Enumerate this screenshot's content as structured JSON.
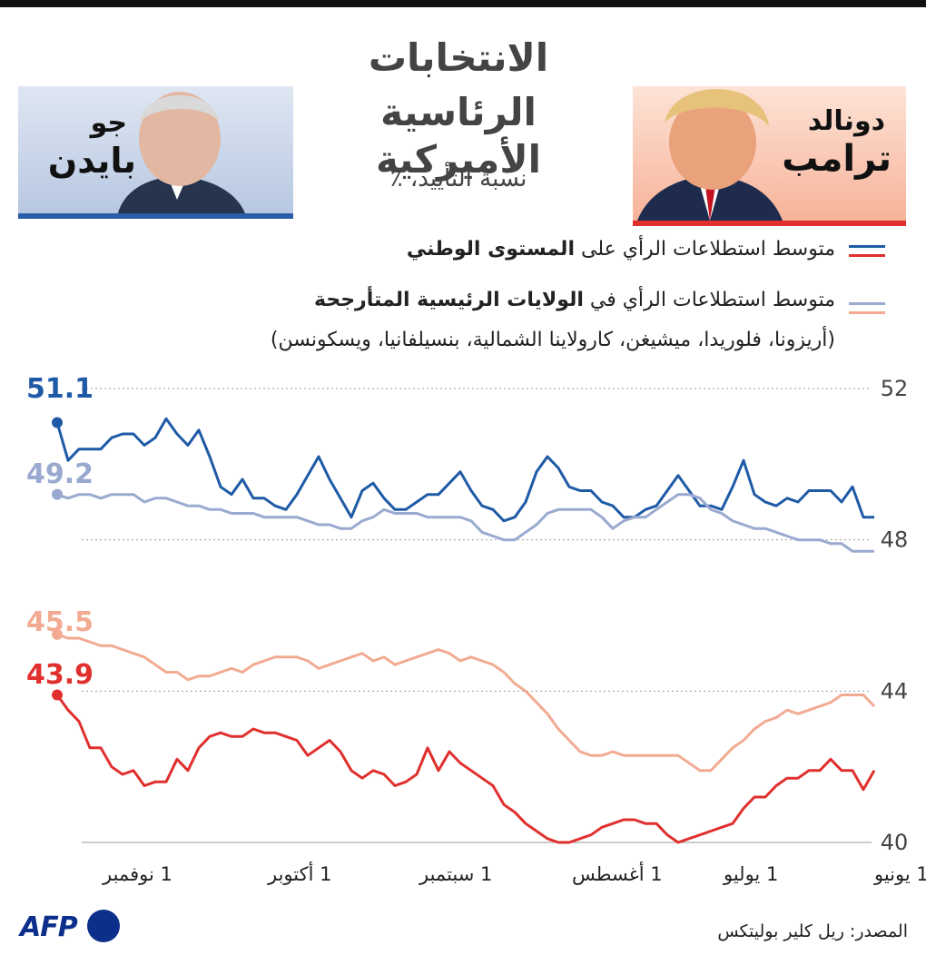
{
  "header": {
    "title_line1": "الانتخابات",
    "title_line2": "الرئاسية الأميركية",
    "subtitle": "نسبة التأييد، ٪"
  },
  "candidates": {
    "biden": {
      "first": "جو",
      "last": "بايدن"
    },
    "trump": {
      "first": "دونالد",
      "last": "ترامب"
    }
  },
  "legend": {
    "national_prefix": "متوسط استطلاعات الرأي على ",
    "national_bold": "المستوى الوطني",
    "swing_prefix": "متوسط استطلاعات الرأي في ",
    "swing_bold": "الولايات الرئيسية المتأرجحة",
    "swing_states": "(أريزونا، فلوريدا، ميشيغن، كارولاينا الشمالية، بنسيلفانيا، ويسكونسن)"
  },
  "colors": {
    "biden_national": "#1f5aa6",
    "biden_swing": "#99a9cf",
    "trump_national": "#e0302e",
    "trump_swing": "#f2ab92",
    "grid": "#999999",
    "label_grey": "#444444"
  },
  "chart_data": {
    "type": "line",
    "title": "الانتخابات الرئاسية الأميركية",
    "ylabel": "نسبة التأييد، ٪",
    "ylim": [
      40,
      52
    ],
    "yticks": [
      "52",
      "48",
      "44",
      "40"
    ],
    "xticks": [
      "1 يونيو",
      "1 يوليو",
      "1 أغسطس",
      "1 سبتمبر",
      "1 أكتوبر",
      "1 نوفمبر"
    ],
    "x_direction": "right-to-left (June at right, November at left)",
    "series": [
      {
        "name": "بايدن — المستوى الوطني",
        "key": "biden_national",
        "end_label": "51.1",
        "values": [
          48.6,
          48.6,
          49.4,
          49.0,
          49.3,
          49.3,
          49.3,
          49.0,
          49.1,
          48.9,
          49.0,
          49.2,
          50.1,
          49.4,
          48.8,
          48.9,
          48.9,
          49.3,
          49.7,
          49.3,
          48.9,
          48.8,
          48.6,
          48.6,
          48.9,
          49.0,
          49.3,
          49.3,
          49.4,
          49.9,
          50.2,
          49.8,
          49.0,
          48.6,
          48.5,
          48.8,
          48.9,
          49.3,
          49.8,
          49.5,
          49.2,
          49.2,
          49.0,
          48.8,
          48.8,
          49.1,
          49.5,
          49.3,
          48.6,
          49.1,
          49.6,
          50.2,
          49.7,
          49.2,
          48.8,
          48.9,
          49.1,
          49.1,
          49.6,
          49.2,
          49.4,
          50.2,
          50.9,
          50.5,
          50.8,
          51.2,
          50.7,
          50.5,
          50.8,
          50.8,
          50.7,
          50.4,
          50.4,
          50.4,
          50.1,
          51.1
        ]
      },
      {
        "name": "بايدن — الولايات المتأرجحة",
        "key": "biden_swing",
        "end_label": "49.2",
        "values": [
          47.7,
          47.7,
          47.7,
          47.9,
          47.9,
          48.0,
          48.0,
          48.0,
          48.1,
          48.2,
          48.3,
          48.3,
          48.4,
          48.5,
          48.7,
          48.8,
          49.1,
          49.2,
          49.2,
          49.0,
          48.8,
          48.6,
          48.6,
          48.5,
          48.3,
          48.6,
          48.8,
          48.8,
          48.8,
          48.8,
          48.7,
          48.4,
          48.2,
          48.0,
          48.0,
          48.1,
          48.2,
          48.5,
          48.6,
          48.6,
          48.6,
          48.6,
          48.7,
          48.7,
          48.7,
          48.8,
          48.6,
          48.5,
          48.3,
          48.3,
          48.4,
          48.4,
          48.5,
          48.6,
          48.6,
          48.6,
          48.6,
          48.7,
          48.7,
          48.7,
          48.8,
          48.8,
          48.9,
          48.9,
          49.0,
          49.1,
          49.1,
          49.0,
          49.2,
          49.2,
          49.2,
          49.1,
          49.2,
          49.2,
          49.1,
          49.2
        ]
      },
      {
        "name": "ترامب — المستوى الوطني",
        "key": "trump_national",
        "end_label": "43.9",
        "values": [
          41.9,
          41.4,
          41.9,
          41.9,
          42.2,
          41.9,
          41.9,
          41.7,
          41.7,
          41.5,
          41.2,
          41.2,
          40.9,
          40.5,
          40.4,
          40.3,
          40.2,
          40.1,
          40.0,
          40.2,
          40.5,
          40.5,
          40.6,
          40.6,
          40.5,
          40.4,
          40.2,
          40.1,
          40.0,
          40.0,
          40.1,
          40.3,
          40.5,
          40.8,
          41.0,
          41.5,
          41.7,
          41.9,
          42.1,
          42.4,
          41.9,
          42.5,
          41.8,
          41.6,
          41.5,
          41.8,
          41.9,
          41.7,
          41.9,
          42.4,
          42.7,
          42.5,
          42.3,
          42.7,
          42.8,
          42.9,
          42.9,
          43.0,
          42.8,
          42.8,
          42.9,
          42.8,
          42.5,
          41.9,
          42.2,
          41.6,
          41.6,
          41.5,
          41.9,
          41.8,
          42.0,
          42.5,
          42.5,
          43.2,
          43.5,
          43.9
        ]
      },
      {
        "name": "ترامب — الولايات المتأرجحة",
        "key": "trump_swing",
        "end_label": "45.5",
        "values": [
          43.6,
          43.9,
          43.9,
          43.9,
          43.7,
          43.6,
          43.5,
          43.4,
          43.5,
          43.3,
          43.2,
          43.0,
          42.7,
          42.5,
          42.2,
          41.9,
          41.9,
          42.1,
          42.3,
          42.3,
          42.3,
          42.3,
          42.3,
          42.3,
          42.4,
          42.3,
          42.3,
          42.4,
          42.7,
          43.0,
          43.4,
          43.7,
          44.0,
          44.2,
          44.5,
          44.7,
          44.8,
          44.9,
          44.8,
          45.0,
          45.1,
          45.0,
          44.9,
          44.8,
          44.7,
          44.9,
          44.8,
          45.0,
          44.9,
          44.8,
          44.7,
          44.6,
          44.8,
          44.9,
          44.9,
          44.9,
          44.8,
          44.7,
          44.5,
          44.6,
          44.5,
          44.4,
          44.4,
          44.3,
          44.5,
          44.5,
          44.7,
          44.9,
          45.0,
          45.1,
          45.2,
          45.2,
          45.3,
          45.4,
          45.4,
          45.5
        ]
      }
    ]
  },
  "source": "المصدر: ريل كلير بوليتكس",
  "logo_text": "AFP"
}
